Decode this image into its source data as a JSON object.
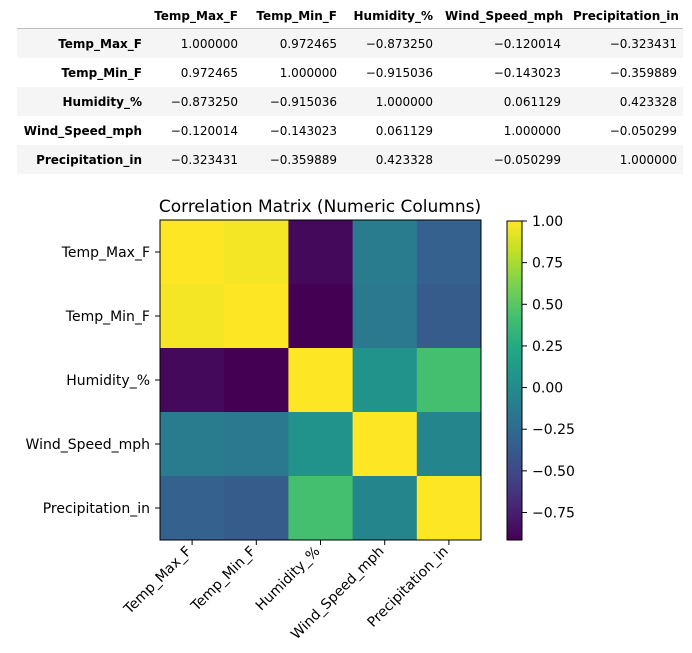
{
  "table": {
    "columns": [
      "Temp_Max_F",
      "Temp_Min_F",
      "Humidity_%",
      "Wind_Speed_mph",
      "Precipitation_in"
    ],
    "rows": [
      {
        "label": "Temp_Max_F",
        "values": [
          "1.000000",
          "0.972465",
          "−0.873250",
          "−0.120014",
          "−0.323431"
        ]
      },
      {
        "label": "Temp_Min_F",
        "values": [
          "0.972465",
          "1.000000",
          "−0.915036",
          "−0.143023",
          "−0.359889"
        ]
      },
      {
        "label": "Humidity_%",
        "values": [
          "−0.873250",
          "−0.915036",
          "1.000000",
          "0.061129",
          "0.423328"
        ]
      },
      {
        "label": "Wind_Speed_mph",
        "values": [
          "−0.120014",
          "−0.143023",
          "0.061129",
          "1.000000",
          "−0.050299"
        ]
      },
      {
        "label": "Precipitation_in",
        "values": [
          "−0.323431",
          "−0.359889",
          "0.423328",
          "−0.050299",
          "1.000000"
        ]
      }
    ]
  },
  "chart_data": {
    "type": "heatmap",
    "title": "Correlation Matrix (Numeric Columns)",
    "x_labels": [
      "Temp_Max_F",
      "Temp_Min_F",
      "Humidity_%",
      "Wind_Speed_mph",
      "Precipitation_in"
    ],
    "y_labels": [
      "Temp_Max_F",
      "Temp_Min_F",
      "Humidity_%",
      "Wind_Speed_mph",
      "Precipitation_in"
    ],
    "values": [
      [
        1.0,
        0.972465,
        -0.87325,
        -0.120014,
        -0.323431
      ],
      [
        0.972465,
        1.0,
        -0.915036,
        -0.143023,
        -0.359889
      ],
      [
        -0.87325,
        -0.915036,
        1.0,
        0.061129,
        0.423328
      ],
      [
        -0.120014,
        -0.143023,
        0.061129,
        1.0,
        -0.050299
      ],
      [
        -0.323431,
        -0.359889,
        0.423328,
        -0.050299,
        1.0
      ]
    ],
    "colormap": "viridis",
    "colorbar": {
      "range": [
        -0.915036,
        1.0
      ],
      "ticks": [
        1.0,
        0.75,
        0.5,
        0.25,
        0.0,
        -0.25,
        -0.5,
        -0.75
      ],
      "tick_labels": [
        "1.00",
        "0.75",
        "0.50",
        "0.25",
        "0.00",
        "−0.25",
        "−0.50",
        "−0.75"
      ]
    },
    "xtick_rotation_deg": 45
  }
}
